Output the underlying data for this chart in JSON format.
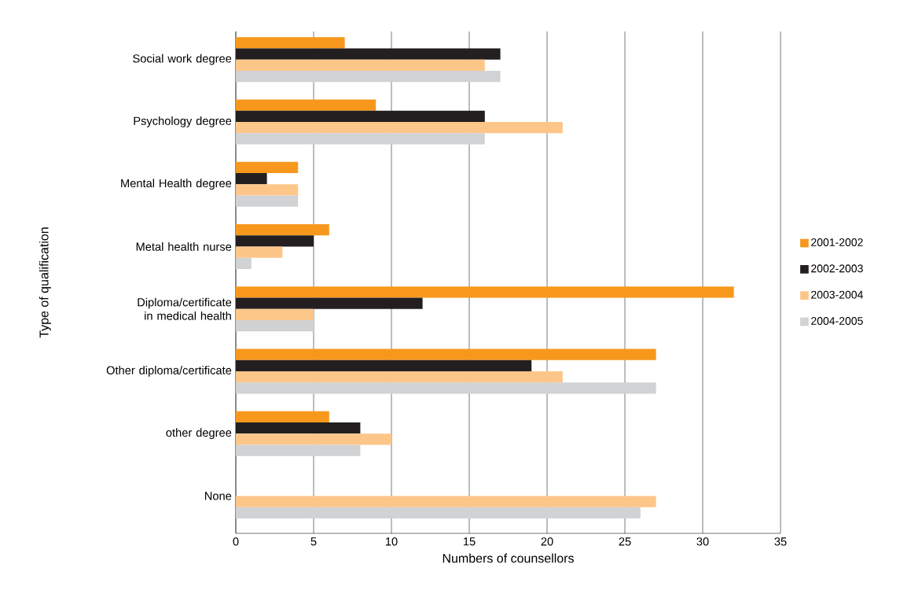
{
  "chart_data": {
    "type": "bar",
    "orientation": "horizontal",
    "xlabel": "Numbers of counsellors",
    "ylabel": "Type of qualification",
    "categories": [
      "Social work degree",
      "Psychology degree",
      "Mental Health degree",
      "Metal health nurse",
      "Diploma/certificate in medical health",
      "Other diploma/certificate",
      "other degree",
      "None"
    ],
    "series": [
      {
        "name": "2001-2002",
        "color": "#f7981d",
        "values": [
          7,
          9,
          4,
          6,
          32,
          27,
          6,
          null
        ]
      },
      {
        "name": "2002-2003",
        "color": "#231f20",
        "values": [
          17,
          16,
          2,
          5,
          12,
          19,
          8,
          null
        ]
      },
      {
        "name": "2003-2004",
        "color": "#fdc689",
        "values": [
          16,
          21,
          4,
          3,
          5,
          21,
          10,
          27
        ]
      },
      {
        "name": "2004-2005",
        "color": "#d1d2d4",
        "values": [
          17,
          16,
          4,
          1,
          5,
          27,
          8,
          26
        ]
      }
    ],
    "xlim": [
      0,
      35
    ],
    "xticks": [
      0,
      5,
      10,
      15,
      20,
      25,
      30,
      35
    ],
    "grid": "x",
    "legend": "right"
  }
}
